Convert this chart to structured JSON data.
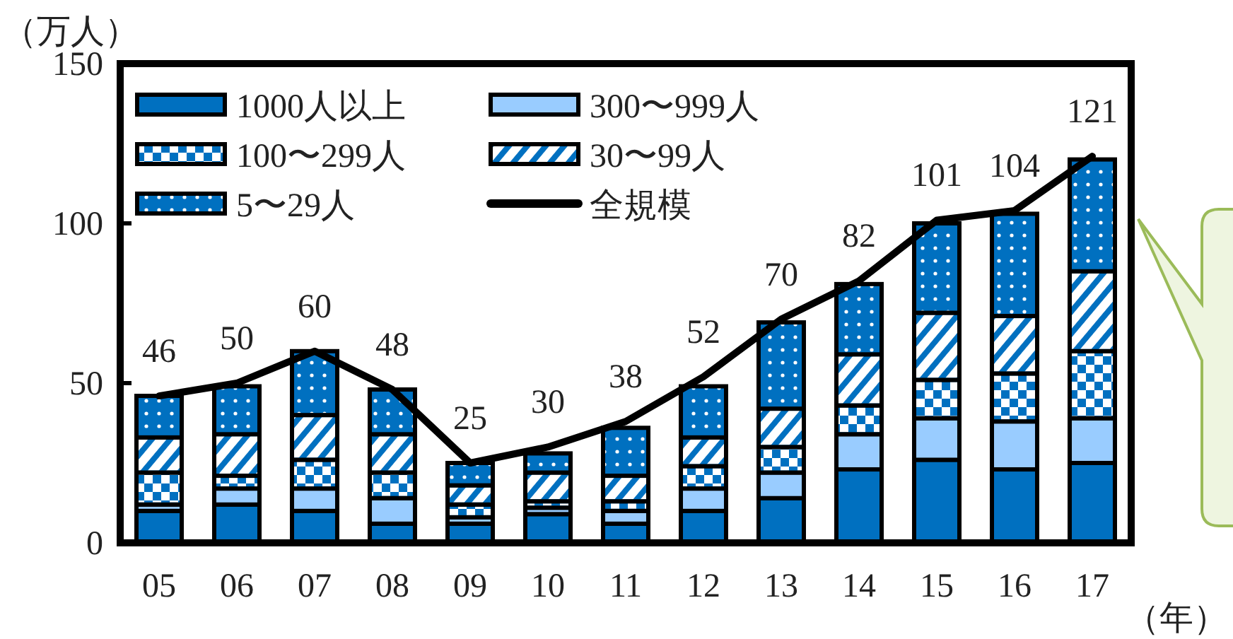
{
  "chart_data": {
    "type": "bar",
    "stacked": true,
    "ylabel": "（万人）",
    "xlabel": "（年）",
    "categories": [
      "05",
      "06",
      "07",
      "08",
      "09",
      "10",
      "11",
      "12",
      "13",
      "14",
      "15",
      "16",
      "17"
    ],
    "ylim": [
      0,
      150
    ],
    "yticks": [
      0,
      50,
      100,
      150
    ],
    "grid": false,
    "legend": "top left",
    "series": [
      {
        "name": "1000人以上",
        "color": "#0070c0",
        "values": [
          10,
          12,
          10,
          6,
          6,
          9,
          6,
          10,
          14,
          23,
          26,
          23,
          25
        ]
      },
      {
        "name": "300〜999人",
        "color": "#99ccff",
        "values": [
          2,
          5,
          7,
          8,
          2,
          2,
          4,
          7,
          8,
          11,
          13,
          15,
          14
        ]
      },
      {
        "name": "100〜299人",
        "color": "#0070c0",
        "values": [
          10,
          4,
          9,
          8,
          4,
          2,
          3,
          7,
          8,
          9,
          12,
          15,
          21
        ]
      },
      {
        "name": "30〜99人",
        "color": "#0070c0",
        "values": [
          11,
          13,
          14,
          12,
          6,
          9,
          8,
          9,
          12,
          16,
          21,
          18,
          25
        ]
      },
      {
        "name": "5〜29人",
        "color": "#0070c0",
        "values": [
          13,
          15,
          20,
          14,
          7,
          6,
          15,
          16,
          27,
          22,
          28,
          32,
          35
        ]
      },
      {
        "name": "全規模",
        "type": "line",
        "color": "#000000",
        "line_style": "solid",
        "values": [
          46,
          50,
          60,
          48,
          25,
          30,
          38,
          52,
          70,
          82,
          101,
          104,
          121
        ],
        "value_labels": [
          "46",
          "50",
          "60",
          "48",
          "25",
          "30",
          "38",
          "52",
          "70",
          "82",
          "101",
          "104",
          "121"
        ]
      }
    ]
  }
}
